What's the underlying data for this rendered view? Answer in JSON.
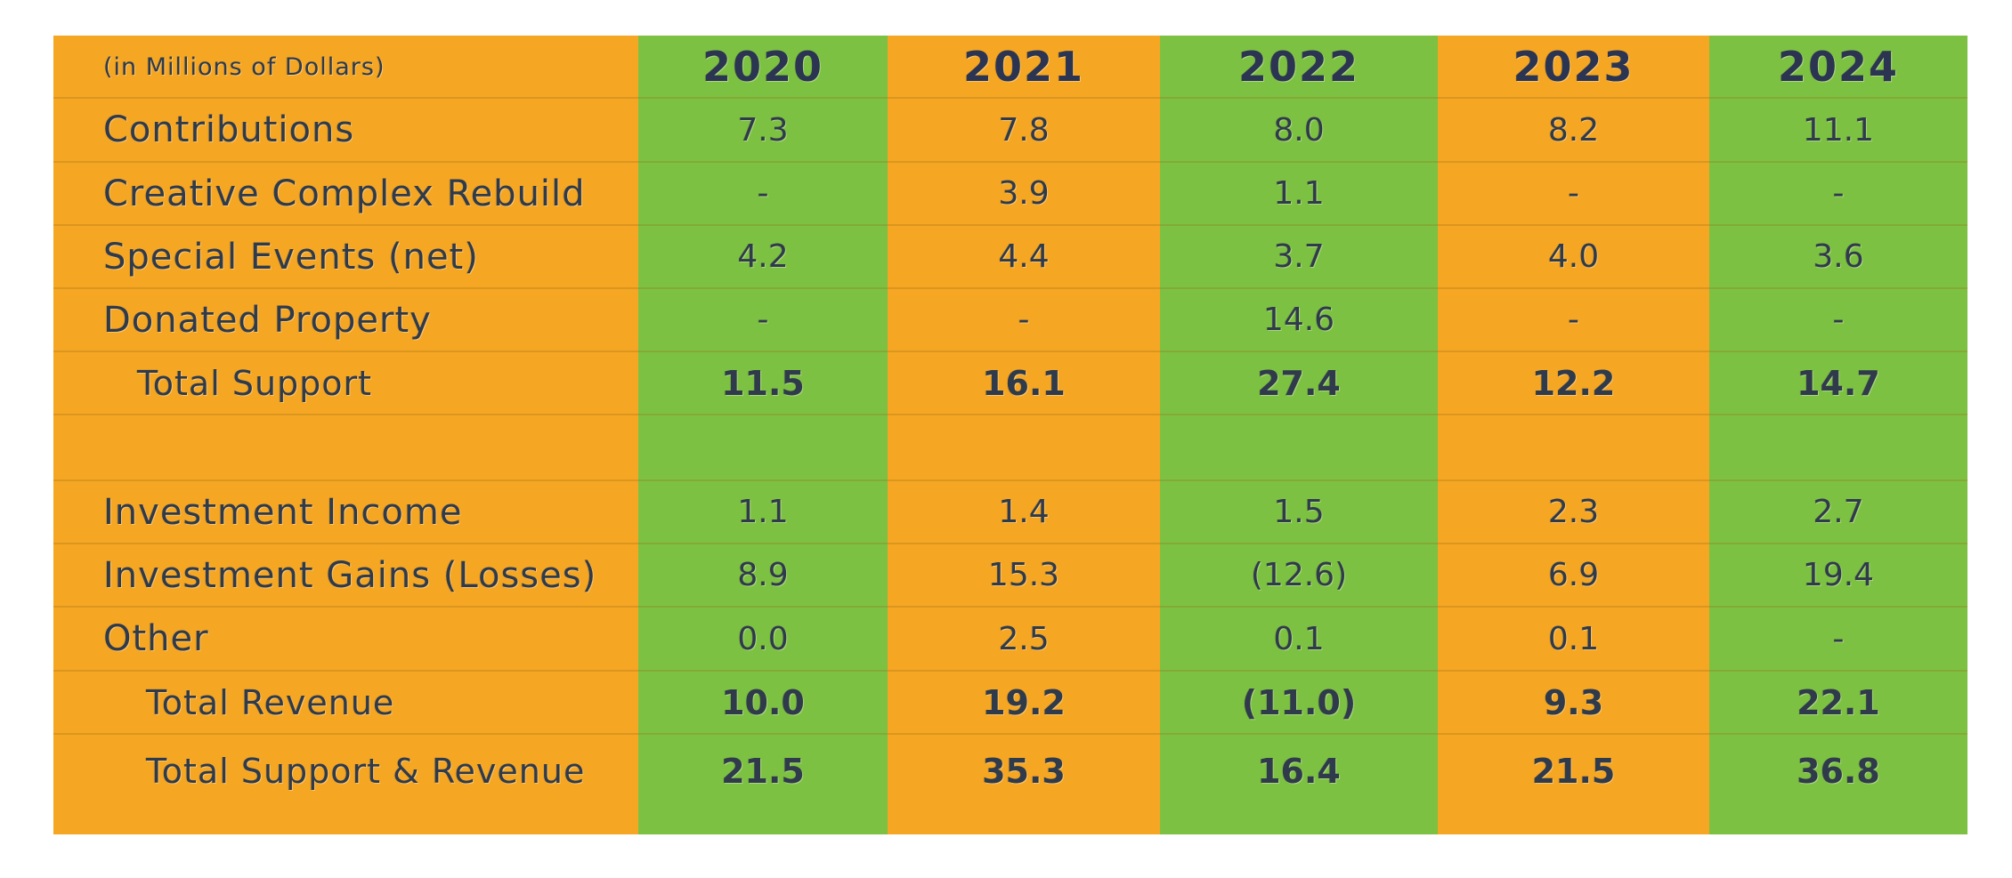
{
  "chart_data": {
    "type": "table",
    "unit_note": "(in Millions of Dollars)",
    "columns": [
      "2020",
      "2021",
      "2022",
      "2023",
      "2024"
    ],
    "colors": {
      "orange": "#F5A623",
      "green": "#7DC142",
      "text": "#2F3A4A"
    },
    "rows": [
      {
        "label": "Contributions",
        "values": [
          "7.3",
          "7.8",
          "8.0",
          "8.2",
          "11.1"
        ]
      },
      {
        "label": "Creative Complex Rebuild",
        "values": [
          "-",
          "3.9",
          "1.1",
          "-",
          "-"
        ]
      },
      {
        "label": "Special Events (net)",
        "values": [
          "4.2",
          "4.4",
          "3.7",
          "4.0",
          "3.6"
        ]
      },
      {
        "label": "Donated Property",
        "values": [
          "-",
          "-",
          "14.6",
          "-",
          "-"
        ]
      },
      {
        "label": "Total Support",
        "values": [
          "11.5",
          "16.1",
          "27.4",
          "12.2",
          "14.7"
        ],
        "total": true
      },
      {
        "label": "",
        "values": [
          "",
          "",
          "",
          "",
          ""
        ],
        "spacer": true
      },
      {
        "label": "Investment Income",
        "values": [
          "1.1",
          "1.4",
          "1.5",
          "2.3",
          "2.7"
        ]
      },
      {
        "label": "Investment Gains (Losses)",
        "values": [
          "8.9",
          "15.3",
          "(12.6)",
          "6.9",
          "19.4"
        ]
      },
      {
        "label": "Other",
        "values": [
          "0.0",
          "2.5",
          "0.1",
          "0.1",
          "-"
        ]
      },
      {
        "label": "Total Revenue",
        "values": [
          "10.0",
          "19.2",
          "(11.0)",
          "9.3",
          "22.1"
        ],
        "total": true
      },
      {
        "label": "Total Support & Revenue",
        "values": [
          "21.5",
          "35.3",
          "16.4",
          "21.5",
          "36.8"
        ],
        "total": true
      }
    ]
  }
}
